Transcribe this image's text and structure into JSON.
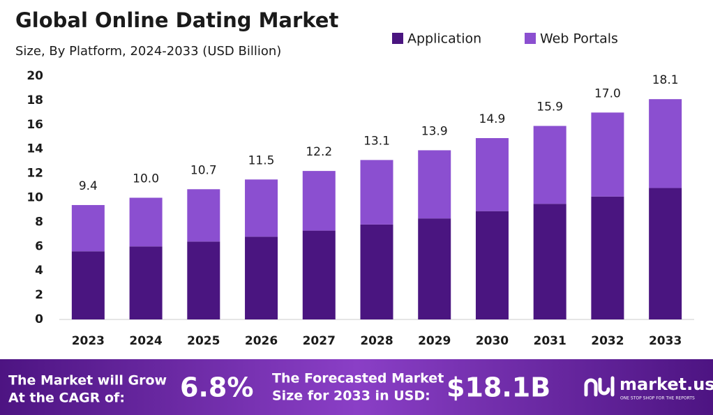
{
  "chart_data": {
    "type": "stacked_bar",
    "title": "Global Online Dating Market",
    "subtitle": "Size, By Platform, 2024-2033 (USD Billion)",
    "categories": [
      "2023",
      "2024",
      "2025",
      "2026",
      "2027",
      "2028",
      "2029",
      "2030",
      "2031",
      "2032",
      "2033"
    ],
    "series": [
      {
        "name": "Application",
        "color": "#4a1580",
        "values": [
          5.6,
          6.0,
          6.4,
          6.8,
          7.3,
          7.8,
          8.3,
          8.9,
          9.5,
          10.1,
          10.8
        ]
      },
      {
        "name": "Web Portals",
        "color": "#8b4fd0",
        "values": [
          3.8,
          4.0,
          4.3,
          4.7,
          4.9,
          5.3,
          5.6,
          6.0,
          6.4,
          6.9,
          7.3
        ]
      }
    ],
    "total_labels": [
      "9.4",
      "10.0",
      "10.7",
      "11.5",
      "12.2",
      "13.1",
      "13.9",
      "14.9",
      "15.9",
      "17.0",
      "18.1"
    ],
    "ylim": [
      0,
      20
    ],
    "yticks": [
      0,
      2,
      4,
      6,
      8,
      10,
      12,
      14,
      16,
      18,
      20
    ],
    "grid": false,
    "legend": "top-right"
  },
  "banner": {
    "cagr_text": [
      "The Market will Grow",
      "At the CAGR of:"
    ],
    "cagr": "6.8%",
    "forecast_text": [
      "The Forecasted Market",
      "Size for 2033 in USD:"
    ],
    "forecast": "$18.1B",
    "brand": "market.us",
    "tagline": "ONE STOP SHOP FOR THE REPORTS"
  }
}
